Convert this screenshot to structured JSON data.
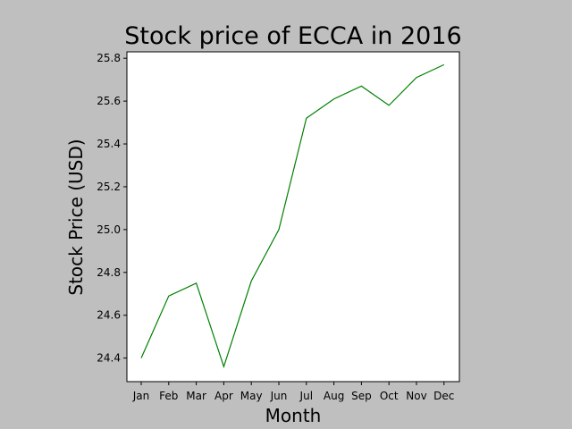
{
  "chart_data": {
    "type": "line",
    "title": "Stock price of ECCA in 2016",
    "xlabel": "Month",
    "ylabel": "Stock Price (USD)",
    "categories": [
      "Jan",
      "Feb",
      "Mar",
      "Apr",
      "May",
      "Jun",
      "Jul",
      "Aug",
      "Sep",
      "Oct",
      "Nov",
      "Dec"
    ],
    "series": [
      {
        "values": [
          24.4,
          24.69,
          24.75,
          24.36,
          24.76,
          25.0,
          25.52,
          25.61,
          25.67,
          25.58,
          25.71,
          25.77
        ],
        "color": "#008000"
      }
    ],
    "ylim": [
      24.29,
      25.83
    ],
    "yticks": [
      "24.4",
      "24.6",
      "24.8",
      "25.0",
      "25.2",
      "25.4",
      "25.6",
      "25.8"
    ],
    "grid": false,
    "background": "#bfbfbf",
    "plot_background": "#ffffff"
  }
}
